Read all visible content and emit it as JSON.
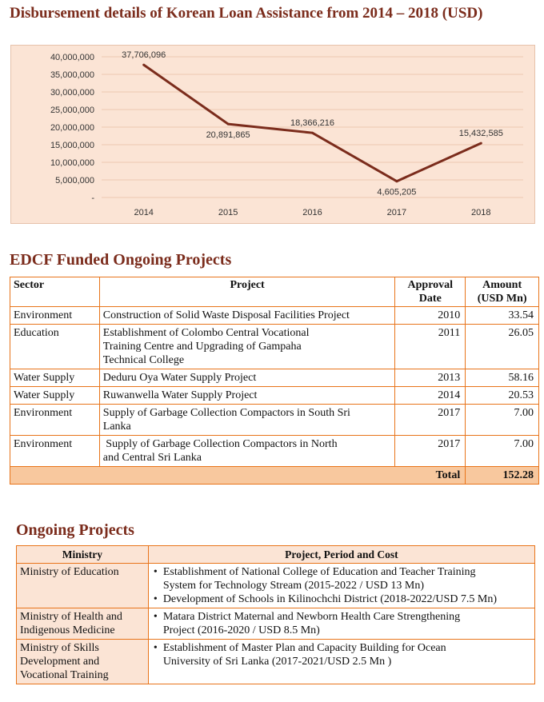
{
  "chart_title": "Disbursement details of Korean Loan Assistance from 2014 – 2018 (USD)",
  "chart_data": {
    "type": "line",
    "title": "Disbursement details of Korean Loan Assistance from 2014 – 2018 (USD)",
    "categories": [
      "2014",
      "2015",
      "2016",
      "2017",
      "2018"
    ],
    "values": [
      37706096,
      20891865,
      18366216,
      4605205,
      15432585
    ],
    "data_labels": [
      "37,706,096",
      "20,891,865",
      "18,366,216",
      "4,605,205",
      "15,432,585"
    ],
    "y_ticks": [
      0,
      5000000,
      10000000,
      15000000,
      20000000,
      25000000,
      30000000,
      35000000,
      40000000
    ],
    "y_tick_labels": [
      "-",
      "5,000,000",
      "10,000,000",
      "15,000,000",
      "20,000,000",
      "25,000,000",
      "30,000,000",
      "35,000,000",
      "40,000,000"
    ],
    "ylim": [
      0,
      40000000
    ],
    "grid": true,
    "legend": "none",
    "line_color": "#7b2c1c",
    "background": "#fbe4d5"
  },
  "edcf": {
    "title": "EDCF Funded Ongoing Projects",
    "headers": {
      "sector": "Sector",
      "project": "Project",
      "approval_l1": "Approval",
      "approval_l2": "Date",
      "amount_l1": "Amount",
      "amount_l2": "(USD Mn)"
    },
    "rows": [
      {
        "sector": "Environment",
        "project": [
          "Construction of Solid Waste Disposal Facilities Project"
        ],
        "date": "2010",
        "amount": "33.54"
      },
      {
        "sector": "Education",
        "project": [
          "Establishment of Colombo Central Vocational",
          "Training Centre and Upgrading of Gampaha",
          "Technical College"
        ],
        "date": "2011",
        "amount": "26.05"
      },
      {
        "sector": "Water Supply",
        "project": [
          "Deduru Oya Water Supply Project"
        ],
        "date": "2013",
        "amount": "58.16"
      },
      {
        "sector": "Water Supply",
        "project": [
          "Ruwanwella Water Supply Project"
        ],
        "date": "2014",
        "amount": "20.53"
      },
      {
        "sector": "Environment",
        "project": [
          "Supply of Garbage Collection Compactors in South Sri",
          "Lanka"
        ],
        "date": "2017",
        "amount": "7.00"
      },
      {
        "sector": "Environment",
        "project": [
          " Supply of Garbage Collection Compactors in North",
          "and Central Sri Lanka"
        ],
        "date": "2017",
        "amount": "7.00"
      }
    ],
    "total_label": "Total",
    "total_value": "152.28",
    "border_color": "#e8741a",
    "total_bg": "#f8c89e"
  },
  "ongoing": {
    "title": "Ongoing Projects",
    "headers": {
      "ministry": "Ministry",
      "project": "Project, Period and Cost"
    },
    "bullet": "•",
    "rows": [
      {
        "ministry": [
          "Ministry of Education"
        ],
        "items": [
          [
            "Establishment of National College of Education and Teacher Training",
            "System for Technology Stream (2015-2022 / USD 13 Mn)"
          ],
          [
            "Development of Schools in Kilinochchi District (2018-2022/USD 7.5 Mn)"
          ]
        ]
      },
      {
        "ministry": [
          "Ministry of Health and",
          "Indigenous Medicine"
        ],
        "items": [
          [
            "Matara District Maternal and Newborn Health Care Strengthening",
            "Project (2016-2020 / USD 8.5 Mn)"
          ]
        ]
      },
      {
        "ministry": [
          "Ministry of Skills",
          "Development and",
          "Vocational Training"
        ],
        "items": [
          [
            "Establishment of Master Plan and Capacity Building for Ocean",
            "University of Sri Lanka (2017-2021/USD 2.5 Mn )"
          ]
        ]
      }
    ],
    "header_bg": "#fbe4d5"
  }
}
